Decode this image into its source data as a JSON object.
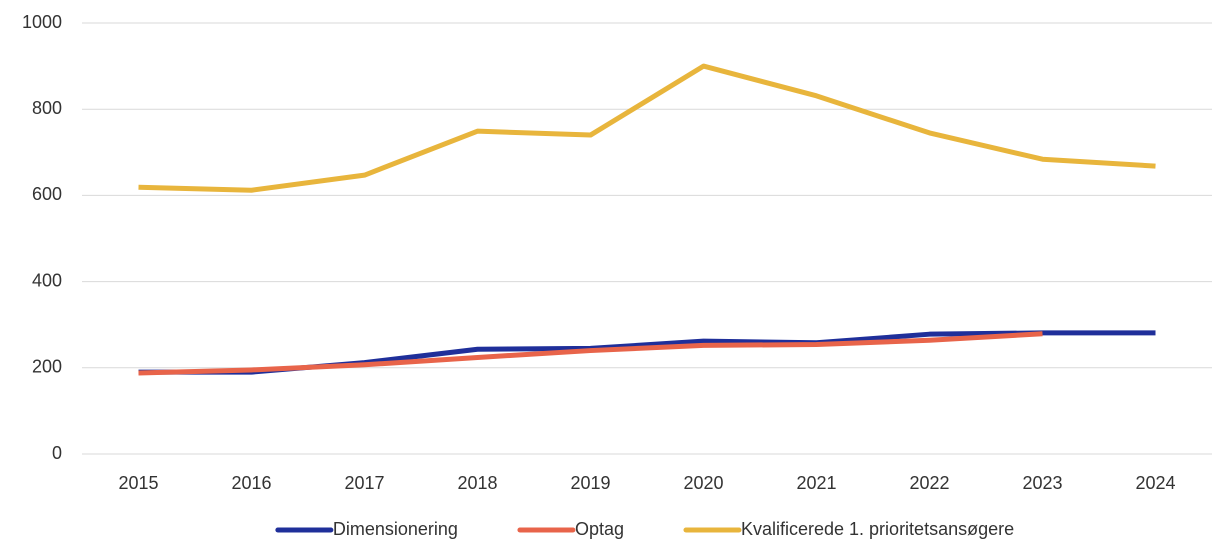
{
  "chart_data": {
    "type": "line",
    "categories": [
      "2015",
      "2016",
      "2017",
      "2018",
      "2019",
      "2020",
      "2021",
      "2022",
      "2023",
      "2024"
    ],
    "series": [
      {
        "name": "Dimensionering",
        "color": "#1f2f9a",
        "values": [
          190,
          190,
          212,
          243,
          245,
          262,
          258,
          278,
          281,
          281
        ]
      },
      {
        "name": "Optag",
        "color": "#e8644a",
        "values": [
          188,
          195,
          207,
          224,
          240,
          252,
          254,
          264,
          279,
          null
        ]
      },
      {
        "name": "Kvalificerede 1. prioritetsansøgere",
        "color": "#e8b53c",
        "values": [
          619,
          612,
          647,
          749,
          740,
          900,
          831,
          745,
          684,
          668
        ]
      }
    ],
    "ylim": [
      0,
      1000
    ],
    "yticks": [
      0,
      200,
      400,
      600,
      800,
      1000
    ],
    "grid": true,
    "legend": "bottom"
  }
}
